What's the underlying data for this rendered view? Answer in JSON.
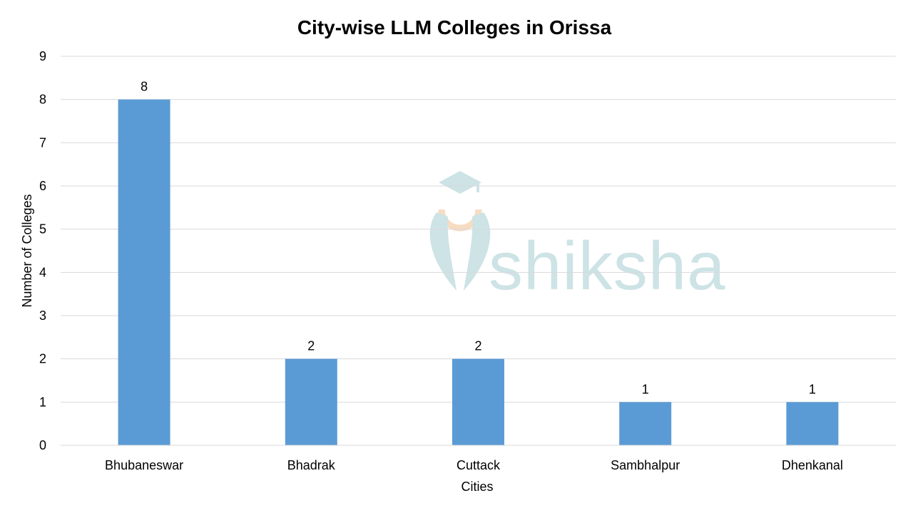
{
  "chart_data": {
    "type": "bar",
    "title": "City-wise LLM Colleges in Orissa",
    "xlabel": "Cities",
    "ylabel": "Number of Colleges",
    "categories": [
      "Bhubaneswar",
      "Bhadrak",
      "Cuttack",
      "Sambhalpur",
      "Dhenkanal"
    ],
    "values": [
      8,
      2,
      2,
      1,
      1
    ],
    "ylim": [
      0,
      9
    ],
    "yticks": [
      0,
      1,
      2,
      3,
      4,
      5,
      6,
      7,
      8,
      9
    ],
    "grid": true,
    "legend": "none",
    "data_labels": true
  },
  "colors": {
    "bar": "#5b9bd5",
    "grid": "#d9d9d9",
    "watermark": "#cde3e6",
    "watermark_accent": "#f7dcc3"
  },
  "watermark": {
    "text": "shiksha",
    "icon": "graduation-cap-icon"
  }
}
